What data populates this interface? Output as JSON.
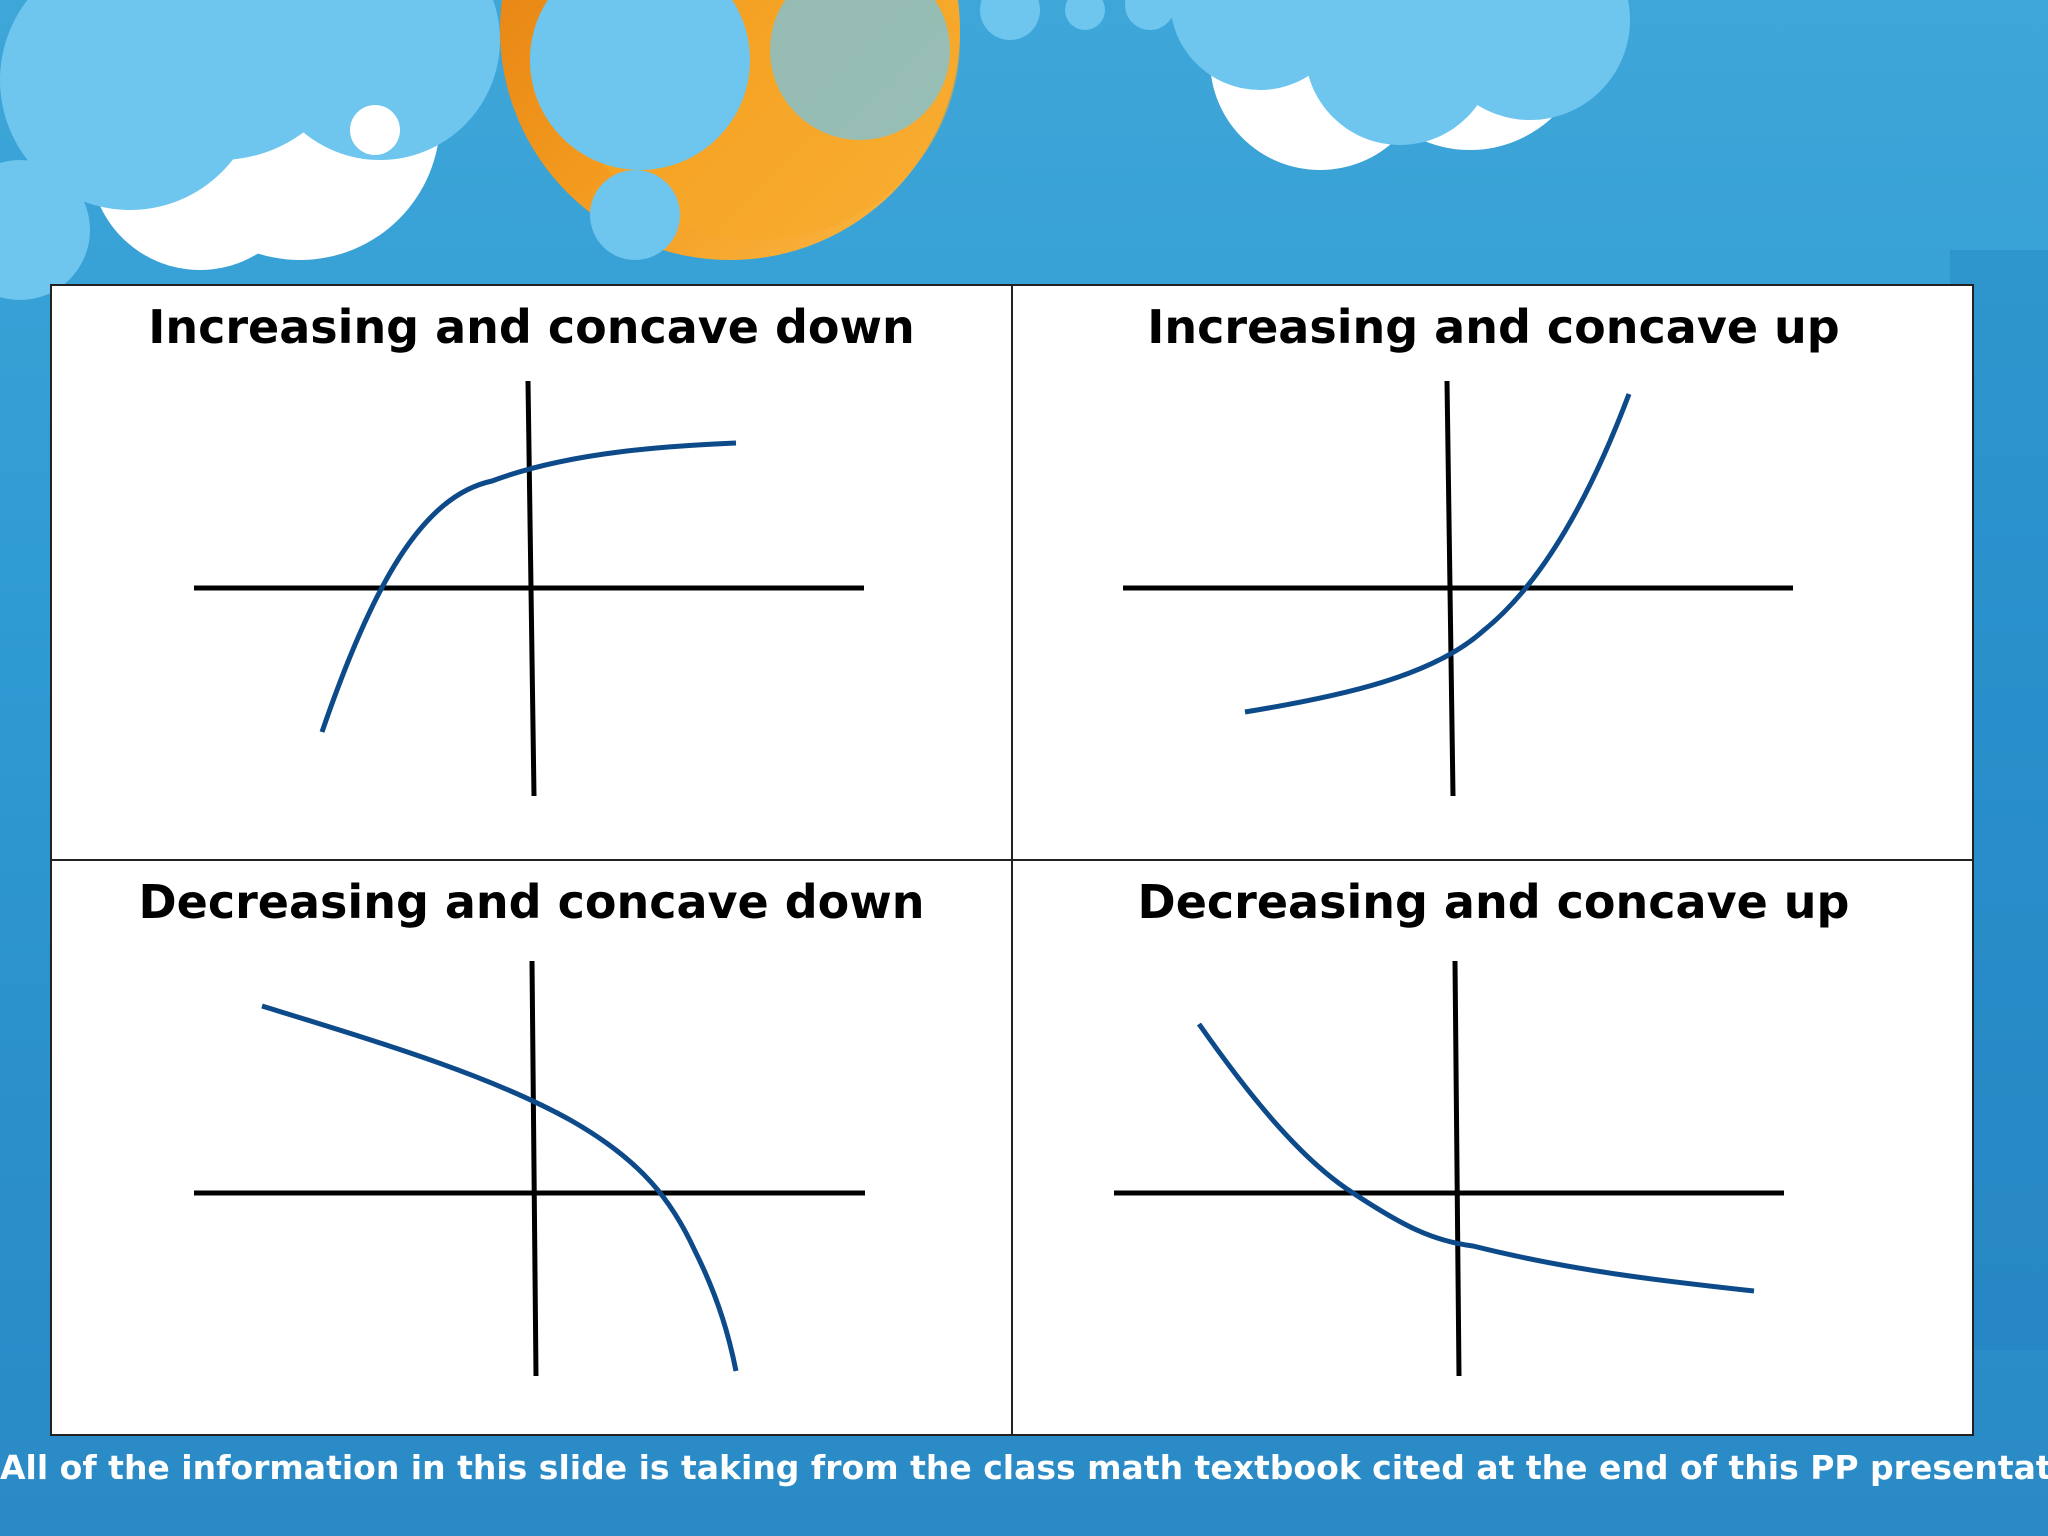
{
  "slide": {
    "panels": [
      {
        "title": "Increasing and concave down"
      },
      {
        "title": "Increasing and concave up"
      },
      {
        "title": "Decreasing and concave down"
      },
      {
        "title": "Decreasing and concave up"
      }
    ],
    "footer": "All of the information in this slide is taking from the class math textbook cited at the end of this PP presentation."
  },
  "colors": {
    "curve": "#0d4a8a",
    "axis": "#000000",
    "sky": "#2f9bd3",
    "cloud": "#6ec6ef",
    "sun": "#f5a623"
  },
  "icons": [
    "cloud-icon",
    "sun-icon"
  ]
}
